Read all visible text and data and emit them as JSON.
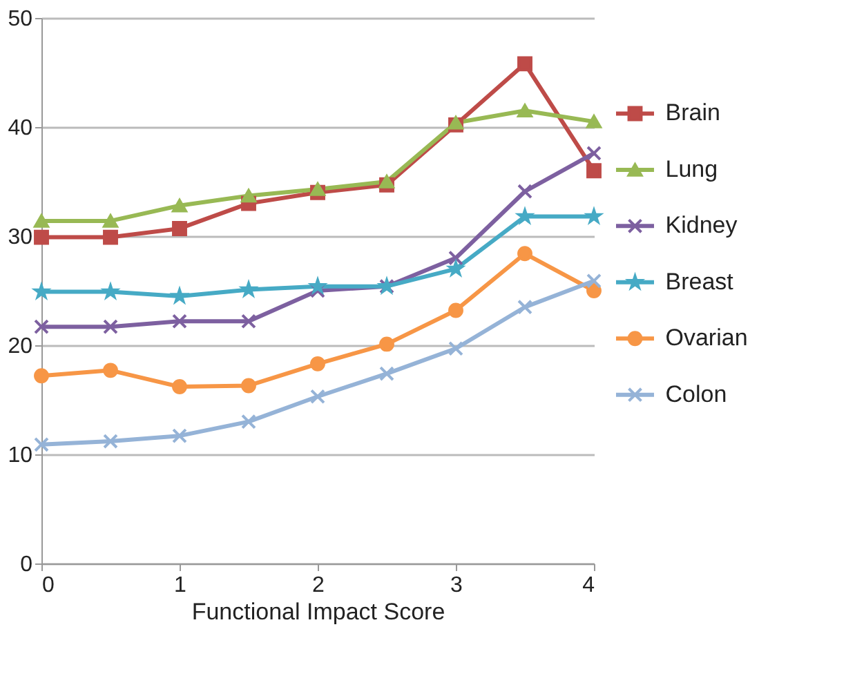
{
  "chart_data": {
    "type": "line",
    "xlabel": "Functional Impact Score",
    "x": [
      0,
      0.5,
      1,
      1.5,
      2,
      2.5,
      3,
      3.5,
      4
    ],
    "series": [
      {
        "name": "Brain",
        "color": "#be4b48",
        "marker": "square",
        "values": [
          29.9,
          29.9,
          30.7,
          33.0,
          34.0,
          34.7,
          40.2,
          45.8,
          36.0
        ]
      },
      {
        "name": "Lung",
        "color": "#98b954",
        "marker": "triangle",
        "values": [
          31.4,
          31.4,
          32.8,
          33.7,
          34.3,
          35.0,
          40.4,
          41.5,
          40.5
        ]
      },
      {
        "name": "Kidney",
        "color": "#7d60a0",
        "marker": "cross",
        "values": [
          21.7,
          21.7,
          22.2,
          22.2,
          25.0,
          25.4,
          28.0,
          34.1,
          37.6
        ]
      },
      {
        "name": "Breast",
        "color": "#46aac5",
        "marker": "star",
        "values": [
          24.9,
          24.9,
          24.5,
          25.1,
          25.4,
          25.4,
          27.0,
          31.8,
          31.8
        ]
      },
      {
        "name": "Ovarian",
        "color": "#f79646",
        "marker": "circle",
        "values": [
          17.2,
          17.7,
          16.2,
          16.3,
          18.3,
          20.1,
          23.2,
          28.4,
          25.0
        ]
      },
      {
        "name": "Colon",
        "color": "#95b3d7",
        "marker": "cross",
        "values": [
          10.9,
          11.2,
          11.7,
          13.0,
          15.3,
          17.4,
          19.7,
          23.5,
          25.9
        ]
      }
    ],
    "xlim": [
      0,
      4
    ],
    "xticks": [
      0,
      1,
      2,
      3,
      4
    ],
    "ylim": [
      0,
      50
    ],
    "yticks": [
      0,
      10,
      20,
      30,
      40,
      50
    ],
    "grid": "y",
    "legend": "right",
    "line_style": "solid"
  }
}
